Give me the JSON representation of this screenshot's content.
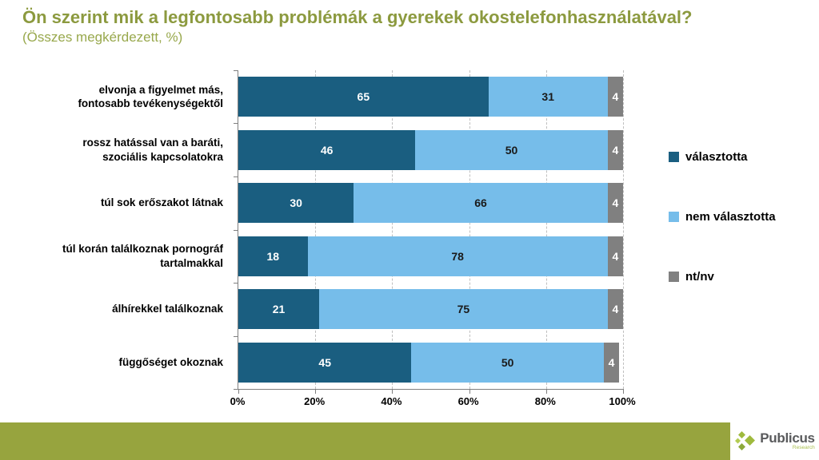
{
  "header": {
    "title": "Ön szerint mik a legfontosabb problémák a gyerekek okostelefonhasználatával?",
    "subtitle": "(Összes megkérdezett, %)",
    "title_color": "#8C9A3F"
  },
  "chart_data": {
    "type": "bar",
    "orientation": "horizontal-stacked",
    "categories": [
      "elvonja a figyelmet más,\nfontosabb tevékenységektől",
      "rossz hatással van a baráti,\nszociális kapcsolatokra",
      "túl sok erőszakot látnak",
      "túl korán találkoznak pornográf\ntartalmakkal",
      "álhírekkel találkoznak",
      "függőséget okoznak"
    ],
    "series": [
      {
        "name": "választotta",
        "color": "#1A5E80",
        "label_color": "#FFFFFF",
        "values": [
          65,
          46,
          30,
          18,
          21,
          45
        ]
      },
      {
        "name": "nem választotta",
        "color": "#76BDEA",
        "label_color": "#1A1A1A",
        "values": [
          31,
          50,
          66,
          78,
          75,
          50
        ]
      },
      {
        "name": "nt/nv",
        "color": "#808080",
        "label_color": "#FFFFFF",
        "values": [
          4,
          4,
          4,
          4,
          4,
          4
        ]
      }
    ],
    "xlim": [
      0,
      100
    ],
    "x_tick_labels": [
      "0%",
      "20%",
      "40%",
      "60%",
      "80%",
      "100%"
    ],
    "grid": "vertical-dashed",
    "gridline_color": "#BFBFBF",
    "axis_color": "#7F7F7F",
    "legend_position": "right"
  },
  "footer": {
    "strip_color": "#97A43E",
    "logo_text": "Publicus",
    "logo_subtext": "Research",
    "logo_greens": [
      "#9FBA3D",
      "#B3CC52",
      "#8CA93A"
    ]
  }
}
